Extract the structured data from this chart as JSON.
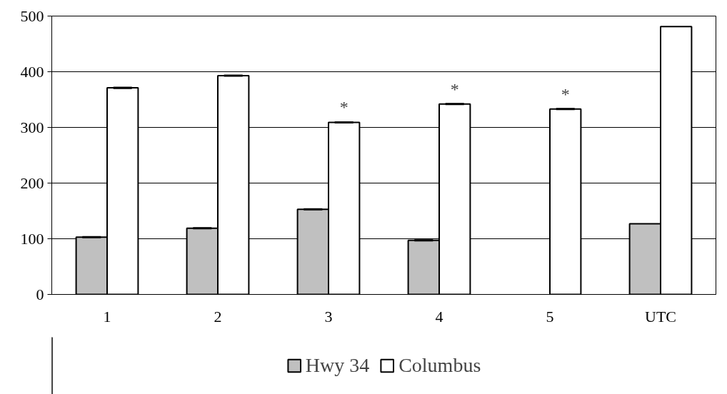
{
  "chart_data": {
    "type": "bar",
    "categories": [
      "1",
      "2",
      "3",
      "4",
      "5",
      "UTC"
    ],
    "series": [
      {
        "name": "Hwy 34",
        "color": "#c0c0c0",
        "values": [
          103,
          119,
          153,
          97,
          null,
          127
        ],
        "errors": [
          1,
          1,
          1,
          1,
          null,
          null
        ]
      },
      {
        "name": "Columbus",
        "color": "#ffffff",
        "values": [
          371,
          393,
          309,
          342,
          333,
          481
        ],
        "errors": [
          1,
          1,
          1,
          1,
          1,
          null
        ]
      }
    ],
    "annotations": [
      {
        "text": "*",
        "x": "3",
        "y": 309
      },
      {
        "text": "*",
        "x": "4",
        "y": 342
      },
      {
        "text": "*",
        "x": "5",
        "y": 333
      }
    ],
    "ylim": [
      0,
      500
    ],
    "yticks": [
      0,
      100,
      200,
      300,
      400,
      500
    ],
    "grid": "y",
    "legend": "bottom"
  }
}
